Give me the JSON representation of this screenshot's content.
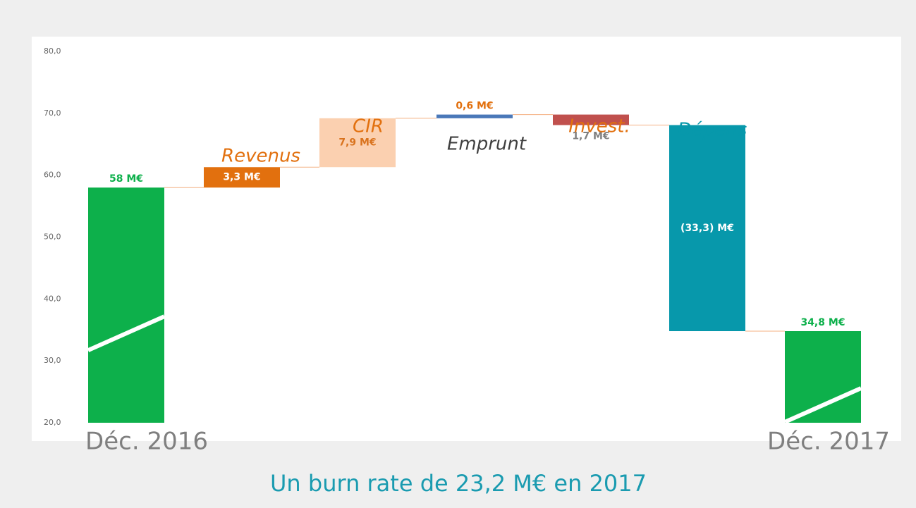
{
  "chart_data": {
    "type": "waterfall",
    "subtitle": "Un burn rate de 23,2 M€ en 2017",
    "categories": [
      "Déc. 2016",
      "Revenus",
      "CIR",
      "Emprunt",
      "Invest.",
      "Dépens",
      "Déc. 2017"
    ],
    "values": [
      58,
      3.3,
      7.9,
      0.6,
      -1.7,
      -33.3,
      34.8
    ],
    "value_labels": [
      "58 M€",
      "3,3 M€",
      "7,9 M€",
      "0,6 M€",
      "1,7 M€",
      "(33,3) M€",
      "34,8 M€"
    ],
    "colors": [
      "#0db04b",
      "#e2700e",
      "#fbd0b0",
      "#4a78b8",
      "#c0504d",
      "#0798ab",
      "#0db04b"
    ],
    "value_label_colors": [
      "#0db04b",
      "#ffffff",
      "#d9731e",
      "#e2700e",
      "#7f7f7f",
      "#ffffff",
      "#0db04b"
    ],
    "category_colors": [
      "#7f7f7f",
      "#e2700e",
      "#e2700e",
      "#404040",
      "#e2700e",
      "#0798ab",
      "#7f7f7f"
    ],
    "ylim": [
      20,
      80
    ],
    "yticks": [
      {
        "value": 20,
        "label": "20,0"
      },
      {
        "value": 30,
        "label": "30,0"
      },
      {
        "value": 40,
        "label": "40,0"
      },
      {
        "value": 50,
        "label": "50,0"
      },
      {
        "value": 60,
        "label": "60,0"
      },
      {
        "value": 70,
        "label": "70,0"
      },
      {
        "value": 80,
        "label": "80,0"
      }
    ],
    "grid": false
  }
}
